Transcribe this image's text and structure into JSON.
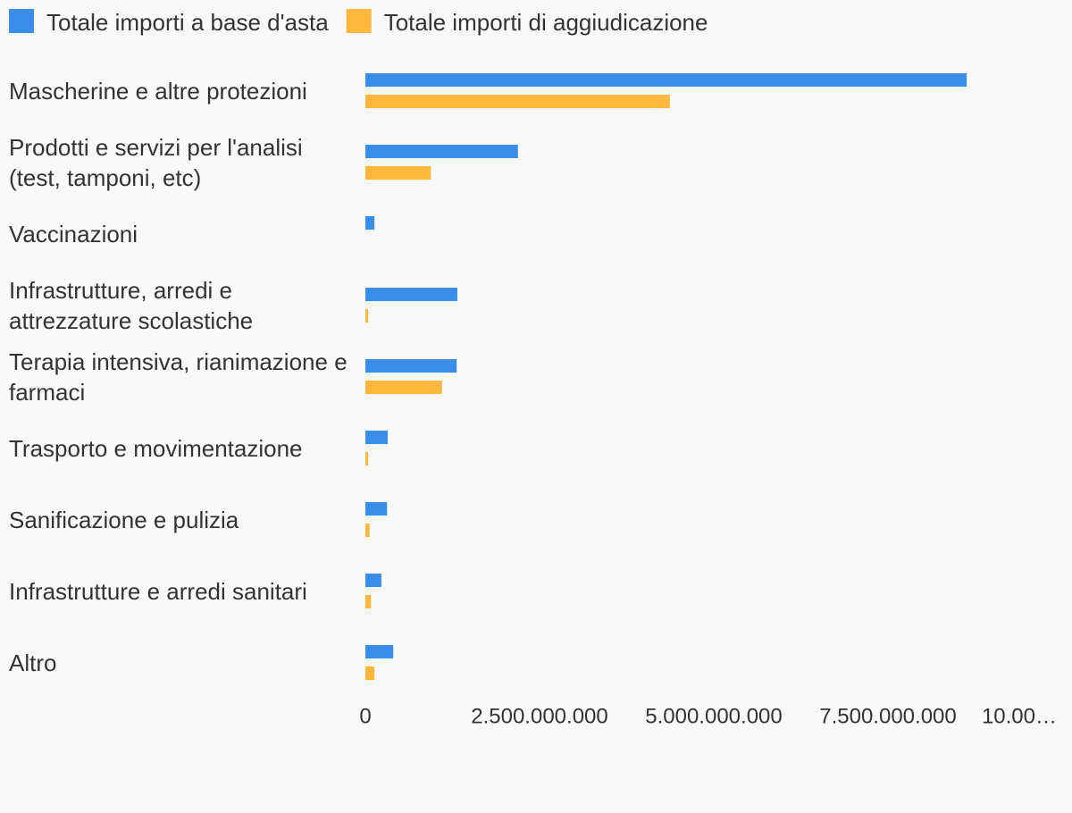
{
  "chart_data": {
    "type": "bar",
    "orientation": "horizontal",
    "categories": [
      "Mascherine e altre protezioni",
      "Prodotti e servizi per l'analisi (test, tamponi, etc)",
      "Vaccinazioni",
      "Infrastrutture, arredi e attrezzature scolastiche",
      "Terapia intensiva, rianimazione e farmaci",
      "Trasporto e movimentazione",
      "Sanificazione e pulizia",
      "Infrastrutture e arredi sanitari",
      "Altro"
    ],
    "series": [
      {
        "name": "Totale importi a base d'asta",
        "color": "#3a8ee9",
        "values": [
          8630000000,
          2190000000,
          130000000,
          1320000000,
          1310000000,
          320000000,
          310000000,
          230000000,
          400000000
        ]
      },
      {
        "name": "Totale importi di aggiudicazione",
        "color": "#ffb83d",
        "values": [
          4370000000,
          940000000,
          0,
          40000000,
          1100000000,
          40000000,
          60000000,
          80000000,
          130000000
        ]
      }
    ],
    "xlim": [
      0,
      10000000000
    ],
    "xticks": [
      0,
      {
        "value": 2500000000,
        "label": "2.500.000.000"
      },
      {
        "value": 5000000000,
        "label": "5.000.000.000"
      },
      {
        "value": 7500000000,
        "label": "7.500.000.000"
      },
      {
        "value": 10000000000,
        "label": "10.00…"
      }
    ],
    "legend": "top-left"
  }
}
